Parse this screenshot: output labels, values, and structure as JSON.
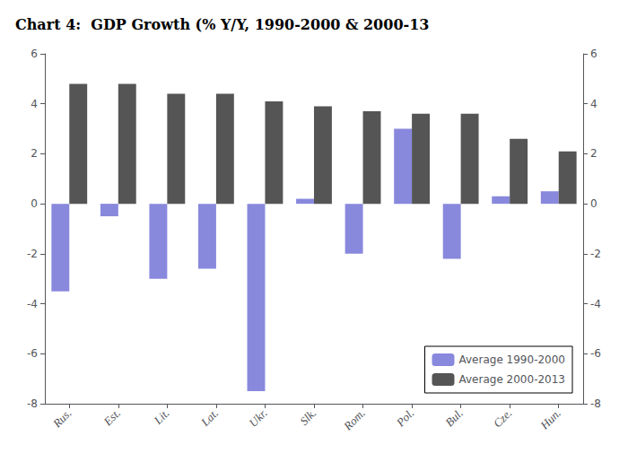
{
  "chart_data": {
    "type": "bar",
    "title": "Chart 4:  GDP Growth (% Y/Y, 1990-2000 & 2000-13",
    "categories": [
      "Rus.",
      "Est.",
      "Lit.",
      "Lat.",
      "Ukr.",
      "Slk.",
      "Rom.",
      "Pol.",
      "Bul.",
      "Cze.",
      "Hun."
    ],
    "series": [
      {
        "name": "Average 1990-2000",
        "color": "#8888dd",
        "values": [
          -3.5,
          -0.5,
          -3.0,
          -2.6,
          -7.5,
          0.2,
          -2.0,
          3.0,
          -2.2,
          0.3,
          0.5
        ]
      },
      {
        "name": "Average 2000-2013",
        "color": "#555555",
        "values": [
          4.8,
          4.8,
          4.4,
          4.4,
          4.1,
          3.9,
          3.7,
          3.6,
          3.6,
          2.6,
          2.1
        ]
      }
    ],
    "ylim": [
      -8,
      6
    ],
    "yticks": [
      -8,
      -6,
      -4,
      -2,
      0,
      2,
      4,
      6
    ],
    "y2lim": [
      -8,
      6
    ],
    "y2ticks": [
      -8,
      -6,
      -4,
      -2,
      0,
      2,
      4,
      6
    ],
    "grid": false,
    "legend": "lower right"
  }
}
